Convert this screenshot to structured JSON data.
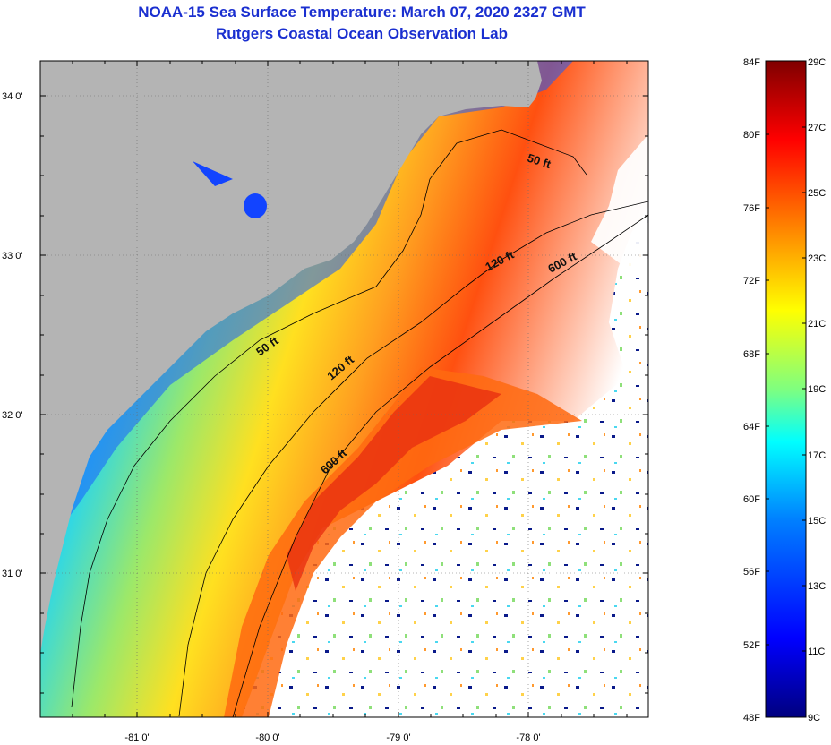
{
  "title_line1": "NOAA-15 Sea Surface Temperature:  March 07, 2020 2327 GMT",
  "title_line2": "Rutgers Coastal Ocean Observation Lab",
  "map": {
    "longitude_ticks": [
      "-81 0'",
      "-80 0'",
      "-79 0'",
      "-78 0'"
    ],
    "latitude_ticks": [
      "34 0'",
      "33 0'",
      "32 0'",
      "31 0'"
    ],
    "contour_labels": [
      "50 ft",
      "120 ft",
      "600 ft",
      "50 ft",
      "120 ft",
      "600 ft"
    ],
    "land_color": "#b4b4b4",
    "no_data_color": "#ffffff"
  },
  "colorbar": {
    "fahrenheit_labels": [
      "84F",
      "80F",
      "76F",
      "72F",
      "68F",
      "64F",
      "60F",
      "56F",
      "52F",
      "48F"
    ],
    "celsius_labels": [
      "29C",
      "27C",
      "25C",
      "23C",
      "21C",
      "19C",
      "17C",
      "15C",
      "13C",
      "11C",
      "9C"
    ],
    "colors": [
      "#00007f",
      "#0000ff",
      "#007fff",
      "#00ffff",
      "#7fff7f",
      "#ffff00",
      "#ff7f00",
      "#ff0000",
      "#7f0000"
    ]
  }
}
